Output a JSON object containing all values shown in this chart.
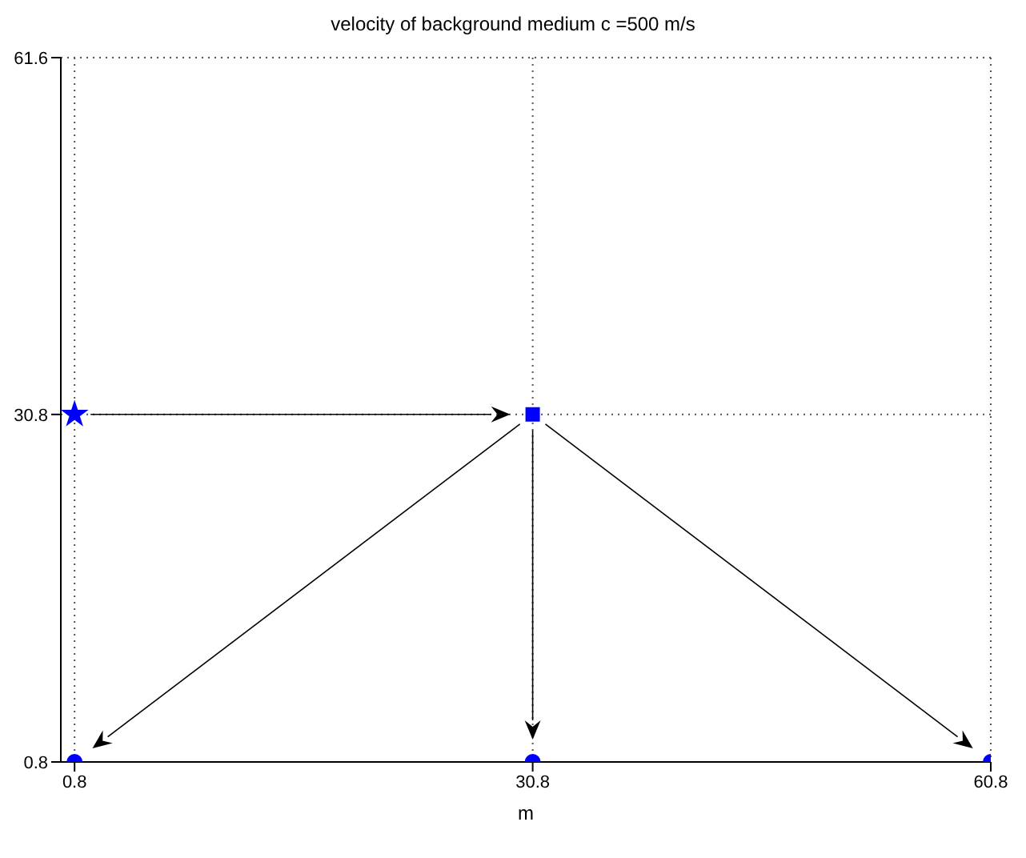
{
  "chart_data": {
    "type": "scatter",
    "title": "velocity of background medium c =500 m/s",
    "xlabel": "m",
    "series": [
      {
        "color": "#0000ff",
        "marker": "star",
        "x": [
          0.8
        ],
        "values": [
          30.8
        ]
      },
      {
        "color": "#0000ff",
        "marker": "square",
        "x": [
          30.8
        ],
        "values": [
          30.8
        ]
      },
      {
        "color": "#0000ff",
        "marker": "circle",
        "x": [
          0.8,
          30.8,
          60.8
        ],
        "values": [
          0.8,
          0.8,
          0.8
        ]
      }
    ],
    "xlim": [
      -0.1,
      60.8
    ],
    "xticks": [
      0.8,
      30.8,
      60.8
    ],
    "ylim": [
      0.8,
      61.6
    ],
    "yticks": [
      0.8,
      30.8,
      61.6
    ],
    "grid": true
  }
}
